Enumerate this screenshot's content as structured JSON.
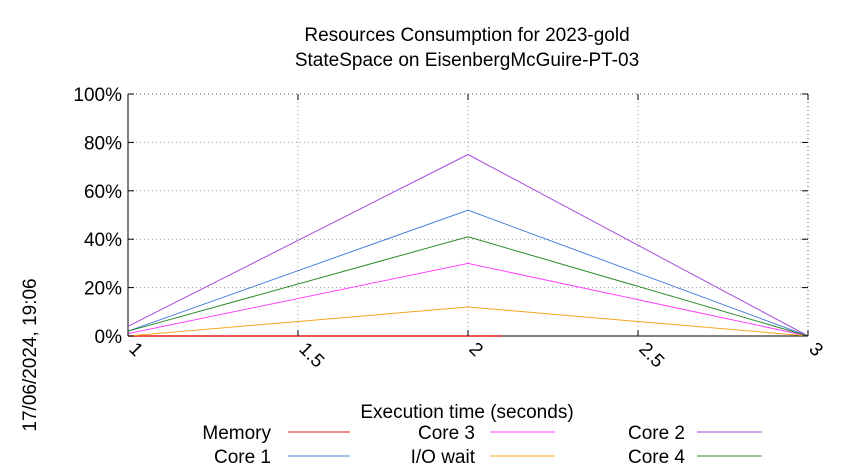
{
  "side_label": "17/06/2024, 19:06",
  "chart_data": {
    "type": "line",
    "title": [
      "Resources Consumption for 2023-gold",
      "StateSpace on EisenbergMcGuire-PT-03"
    ],
    "xlabel": "Execution time (seconds)",
    "ylabel": "",
    "xlim": [
      1,
      3
    ],
    "ylim": [
      0,
      100
    ],
    "x_ticks": [
      1,
      1.5,
      2,
      2.5,
      3
    ],
    "x_tick_labels": [
      "1",
      "1.5",
      "2",
      "2.5",
      "3"
    ],
    "y_ticks": [
      0,
      20,
      40,
      60,
      80,
      100
    ],
    "y_tick_labels": [
      "0%",
      "20%",
      "40%",
      "60%",
      "80%",
      "100%"
    ],
    "grid": true,
    "legend_position": "bottom",
    "series": [
      {
        "name": "Memory",
        "color": "#e41a1c",
        "x": [
          1,
          2,
          2.1
        ],
        "y": [
          0,
          0,
          0
        ]
      },
      {
        "name": "Core 1",
        "color": "#4c7fd6",
        "x": [
          1,
          2,
          3
        ],
        "y": [
          2,
          52,
          0
        ]
      },
      {
        "name": "Core 3",
        "color": "#ff44ff",
        "x": [
          1,
          2,
          3
        ],
        "y": [
          1,
          30,
          0
        ]
      },
      {
        "name": "I/O wait",
        "color": "#f5a623",
        "x": [
          1,
          2,
          3
        ],
        "y": [
          0,
          12,
          0
        ]
      },
      {
        "name": "Core 2",
        "color": "#a64ddb",
        "x": [
          1,
          2,
          3
        ],
        "y": [
          4,
          75,
          0
        ]
      },
      {
        "name": "Core 4",
        "color": "#2e8b2e",
        "x": [
          1,
          2,
          3
        ],
        "y": [
          2,
          41,
          0
        ]
      }
    ]
  }
}
